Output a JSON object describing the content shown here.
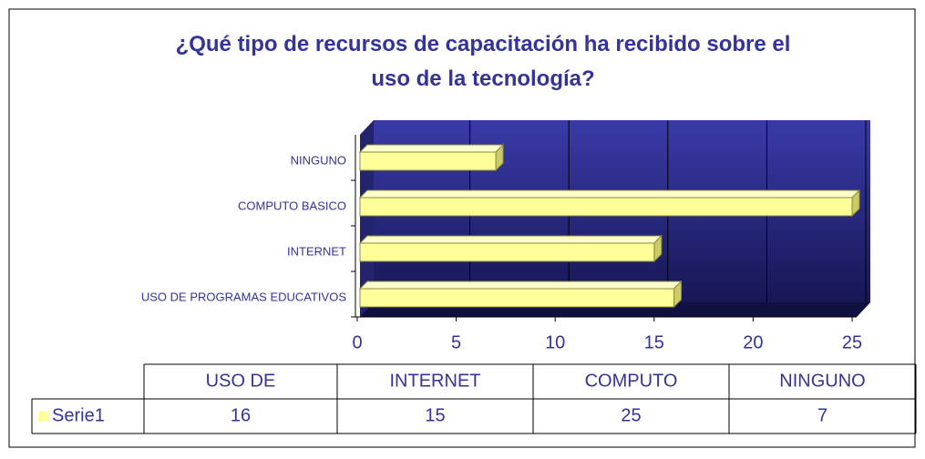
{
  "chart_data": {
    "type": "bar",
    "orientation": "horizontal",
    "title": "¿Qué tipo de recursos de capacitación ha recibido sobre el uso de la tecnología?",
    "categories": [
      "USO DE PROGRAMAS EDUCATIVOS",
      "INTERNET",
      "COMPUTO BASICO",
      "NINGUNO"
    ],
    "series": [
      {
        "name": "Serie1",
        "color": "#ffff99",
        "values": [
          16,
          15,
          25,
          7
        ]
      }
    ],
    "table_headers": [
      "USO DE",
      "INTERNET",
      "COMPUTO",
      "NINGUNO"
    ],
    "xlim": [
      0,
      25
    ],
    "xticks": [
      0,
      5,
      10,
      15,
      20,
      25
    ],
    "grid": true
  }
}
